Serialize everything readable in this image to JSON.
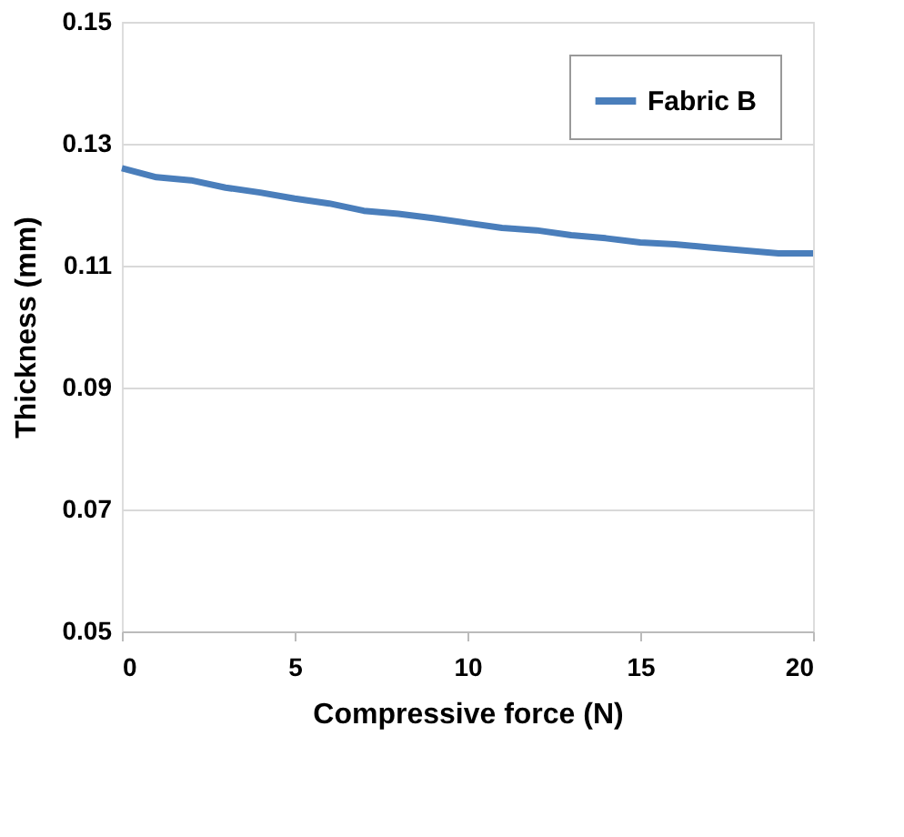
{
  "chart_data": {
    "type": "line",
    "xlabel": "Compressive force (N)",
    "ylabel": "Thickness (mm)",
    "x": [
      0,
      1,
      2,
      3,
      4,
      5,
      6,
      7,
      8,
      9,
      10,
      11,
      12,
      13,
      14,
      15,
      16,
      17,
      18,
      19,
      20
    ],
    "series": [
      {
        "name": "Fabric B",
        "color": "#4a7ebb",
        "values": [
          0.126,
          0.1245,
          0.124,
          0.1228,
          0.122,
          0.121,
          0.1202,
          0.119,
          0.1185,
          0.1178,
          0.117,
          0.1162,
          0.1158,
          0.115,
          0.1145,
          0.1138,
          0.1135,
          0.113,
          0.1125,
          0.112,
          0.112
        ]
      }
    ],
    "xlim": [
      0,
      20
    ],
    "xticks": [
      0,
      5,
      10,
      15,
      20
    ],
    "ylim": [
      0.05,
      0.15
    ],
    "yticks": [
      0.05,
      0.07,
      0.09,
      0.11,
      0.13,
      0.15
    ],
    "grid": "y",
    "legend": "top right",
    "marker": "none",
    "line_style": "solid"
  }
}
